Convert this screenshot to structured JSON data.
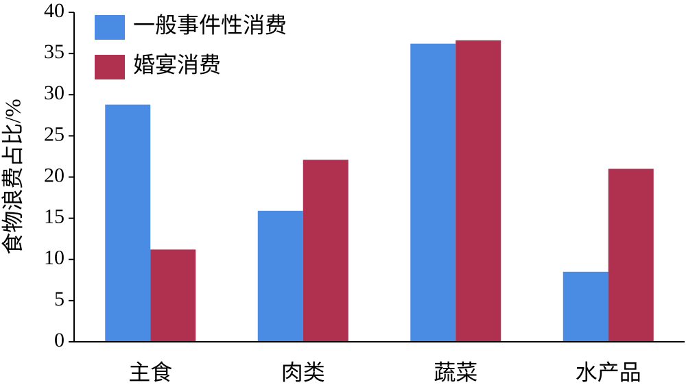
{
  "chart_data": {
    "type": "bar",
    "y_label": "食物浪费占比/%",
    "categories": [
      "主食",
      "肉类",
      "蔬菜",
      "水产品"
    ],
    "series": [
      {
        "name": "一般事件性消费",
        "color": "#4a8be3",
        "values": [
          28.8,
          15.9,
          36.2,
          8.5
        ]
      },
      {
        "name": "婚宴消费",
        "color": "#b03050",
        "values": [
          11.2,
          22.1,
          36.6,
          21.0
        ]
      }
    ],
    "ylim": [
      0,
      40
    ],
    "yticks": [
      0,
      5,
      10,
      15,
      20,
      25,
      30,
      35,
      40
    ],
    "legend": "upper left",
    "grid": false
  }
}
